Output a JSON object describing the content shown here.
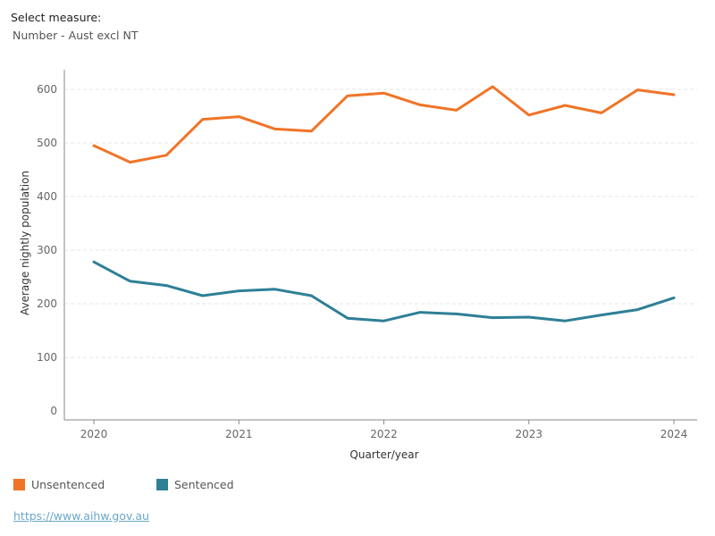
{
  "controls": {
    "measure_label": "Select measure:",
    "measure_value": "Number - Aust excl NT"
  },
  "source": {
    "link_text": "https://www.aihw.gov.au"
  },
  "colors": {
    "unsentenced": "#f07427",
    "sentenced": "#2e7f96",
    "axis": "#888888",
    "grid": "#e6e6e6"
  },
  "chart_data": {
    "type": "line",
    "title": "",
    "xlabel": "Quarter/year",
    "ylabel": "Average nightly population",
    "x_ticks": [
      "2020",
      "2021",
      "2022",
      "2023",
      "2024"
    ],
    "y_ticks": [
      0,
      100,
      200,
      300,
      400,
      500,
      600
    ],
    "ylim": [
      0,
      640
    ],
    "x": [
      "2020-Q1",
      "2020-Q2",
      "2020-Q3",
      "2020-Q4",
      "2021-Q1",
      "2021-Q2",
      "2021-Q3",
      "2021-Q4",
      "2022-Q1",
      "2022-Q2",
      "2022-Q3",
      "2022-Q4",
      "2023-Q1",
      "2023-Q2",
      "2023-Q3",
      "2023-Q4",
      "2024-Q1"
    ],
    "grid": true,
    "legend_position": "bottom-left",
    "series": [
      {
        "name": "Unsentenced",
        "values": [
          495,
          464,
          477,
          544,
          549,
          526,
          522,
          588,
          593,
          571,
          561,
          605,
          552,
          570,
          556,
          599,
          590
        ]
      },
      {
        "name": "Sentenced",
        "values": [
          278,
          242,
          234,
          215,
          224,
          227,
          215,
          173,
          168,
          184,
          181,
          174,
          175,
          168,
          179,
          189,
          211
        ]
      }
    ]
  }
}
